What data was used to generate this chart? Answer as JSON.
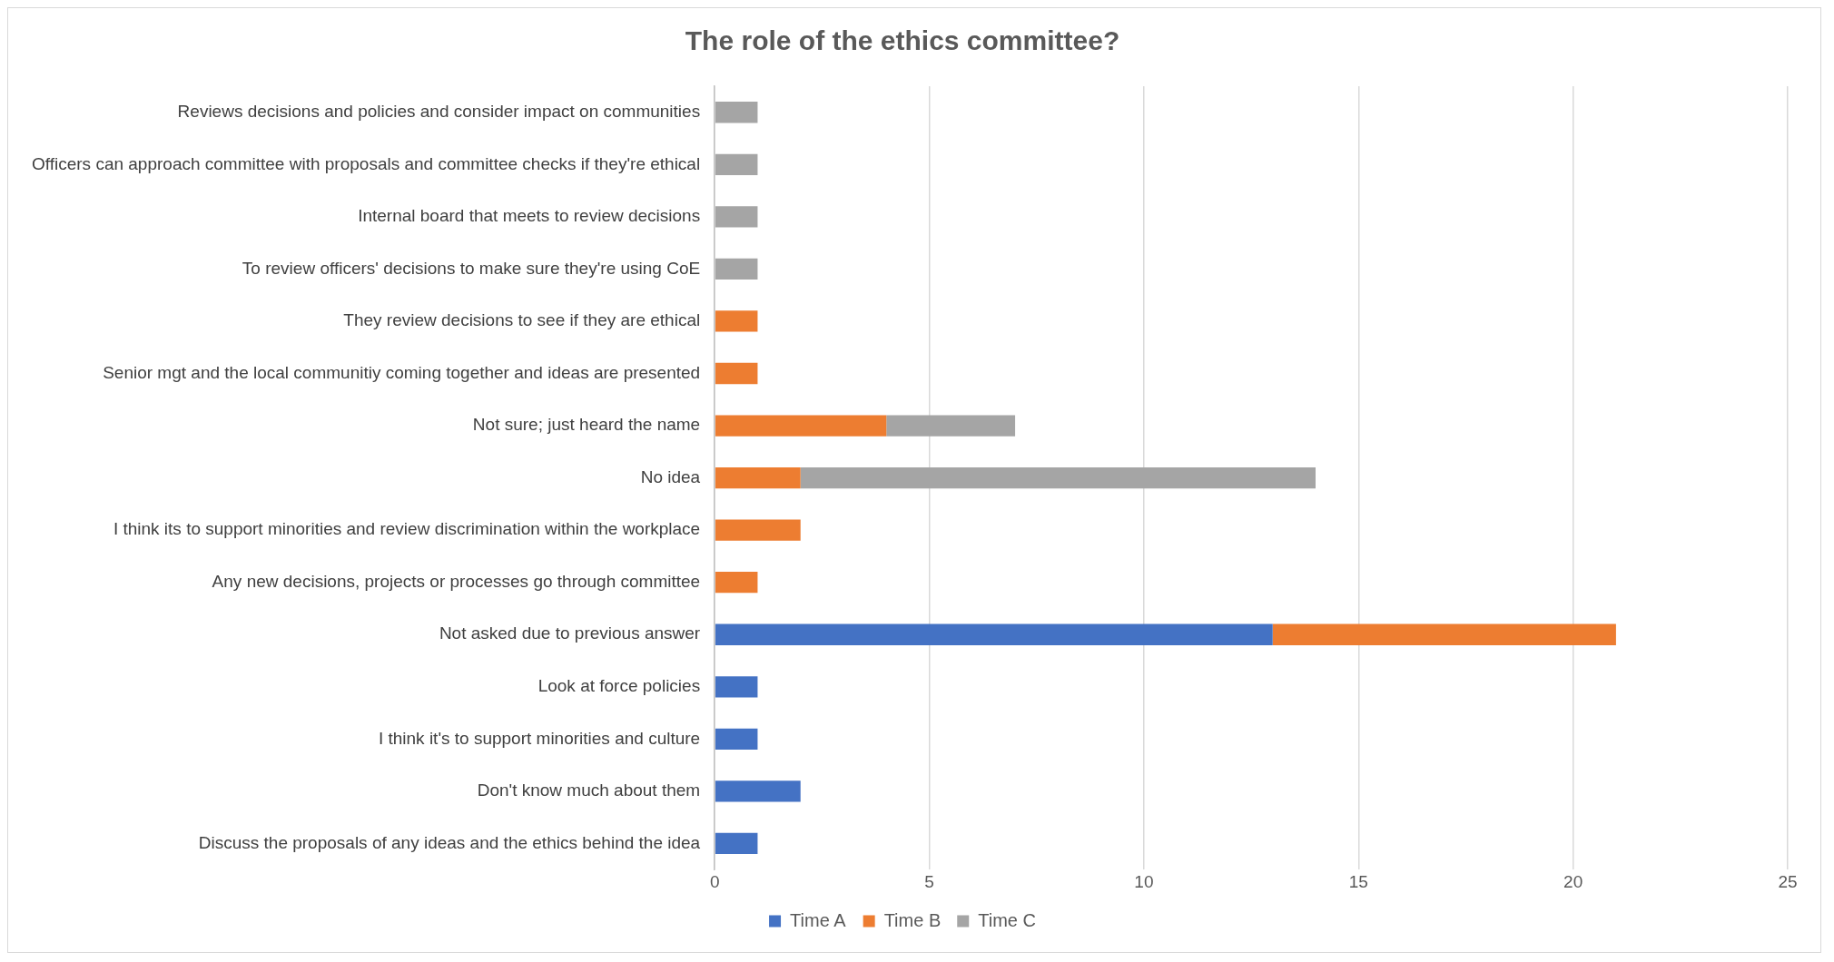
{
  "chart_data": {
    "type": "bar",
    "orientation": "horizontal",
    "stacked": true,
    "title": "The role of the ethics committee?",
    "categories": [
      "Reviews decisions and policies and consider impact on communities",
      "Officers can approach committee with proposals and committee checks if they're ethical",
      "Internal board that meets to review decisions",
      "To review officers' decisions to make sure they're using CoE",
      "They review decisions to see if they are ethical",
      "Senior mgt and the local communitiy coming together and ideas are presented",
      "Not sure; just heard the name",
      "No idea",
      "I think its to support minorities and review discrimination within the workplace",
      "Any new decisions, projects or processes go through committee",
      "Not asked due to previous answer",
      "Look at force policies",
      "I think it's to support minorities and culture",
      "Don't know much about them",
      "Discuss the proposals of any ideas and the ethics behind the idea"
    ],
    "series": [
      {
        "name": "Time A",
        "color": "#4472c4",
        "values": [
          null,
          null,
          null,
          null,
          null,
          null,
          null,
          null,
          null,
          null,
          13,
          1,
          1,
          2,
          1
        ]
      },
      {
        "name": "Time B",
        "color": "#ed7d31",
        "values": [
          null,
          null,
          null,
          null,
          1,
          1,
          4,
          2,
          2,
          1,
          8,
          null,
          null,
          null,
          null
        ]
      },
      {
        "name": "Time C",
        "color": "#a5a5a5",
        "values": [
          1,
          1,
          1,
          1,
          null,
          null,
          3,
          12,
          null,
          null,
          null,
          null,
          null,
          null,
          null
        ]
      }
    ],
    "xlim": [
      0,
      25
    ],
    "xticks": [
      0,
      5,
      10,
      15,
      20,
      25
    ],
    "grid": "x",
    "legend": "bottom"
  }
}
